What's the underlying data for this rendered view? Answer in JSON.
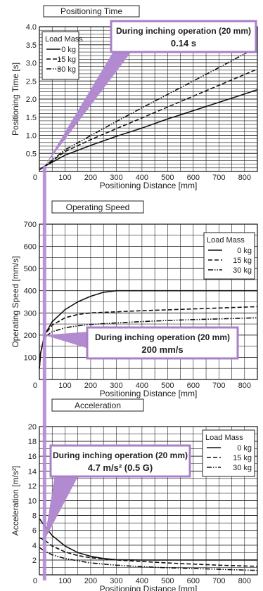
{
  "chart_data": [
    {
      "type": "line",
      "title": "Positioning Time",
      "xlabel": "Positioning Distance [mm]",
      "ylabel": "Positioning Time [s]",
      "xlim": [
        0,
        850
      ],
      "ylim": [
        0,
        4.0
      ],
      "xticks": [
        0,
        100,
        200,
        300,
        400,
        500,
        600,
        700,
        800
      ],
      "yticks": [
        0.5,
        1.0,
        1.5,
        2.0,
        2.5,
        3.0,
        3.5,
        4.0
      ],
      "xtick_labels": [
        "0",
        "100",
        "200",
        "300",
        "400",
        "500",
        "600",
        "700",
        "800"
      ],
      "ytick_labels": [
        "0.5",
        "1.0",
        "1.5",
        "2.0",
        "2.5",
        "3.0",
        "3.5",
        "4.0"
      ],
      "grid": "dense",
      "legend": {
        "title": "Load Mass",
        "placement": "top-left"
      },
      "series": [
        {
          "name": "0 kg",
          "style": "solid",
          "x": [
            0,
            20,
            100,
            200,
            300,
            400,
            500,
            600,
            700,
            800,
            850
          ],
          "y": [
            0.05,
            0.14,
            0.45,
            0.72,
            0.97,
            1.2,
            1.45,
            1.68,
            1.91,
            2.14,
            2.26
          ]
        },
        {
          "name": "15 kg",
          "style": "dashed",
          "x": [
            0,
            20,
            100,
            200,
            300,
            400,
            500,
            600,
            700,
            800,
            850
          ],
          "y": [
            0.05,
            0.14,
            0.55,
            0.88,
            1.18,
            1.48,
            1.78,
            2.08,
            2.38,
            2.68,
            2.83
          ]
        },
        {
          "name": "30 kg",
          "style": "dash-dot-dot",
          "x": [
            0,
            20,
            100,
            200,
            300,
            400,
            500,
            600,
            700,
            800,
            850
          ],
          "y": [
            0.05,
            0.14,
            0.6,
            0.99,
            1.38,
            1.76,
            2.13,
            2.5,
            2.87,
            3.25,
            3.45
          ]
        }
      ],
      "callout": {
        "line1": "During inching operation (20 mm)",
        "line2": "0.14 s",
        "x": 20,
        "y": 0.14
      }
    },
    {
      "type": "line",
      "title": "Operating Speed",
      "xlabel": "Positioning Distance [mm]",
      "ylabel": "Operating Speed [mm/s]",
      "xlim": [
        0,
        850
      ],
      "ylim": [
        0,
        700
      ],
      "xticks": [
        0,
        100,
        200,
        300,
        400,
        500,
        600,
        700,
        800
      ],
      "yticks": [
        100,
        200,
        300,
        400,
        500,
        600,
        700
      ],
      "xtick_labels": [
        "0",
        "100",
        "200",
        "300",
        "400",
        "500",
        "600",
        "700",
        "800"
      ],
      "ytick_labels": [
        "100",
        "200",
        "300",
        "400",
        "500",
        "600",
        "700"
      ],
      "grid": "coarse",
      "legend": {
        "title": "Load Mass",
        "placement": "top-right"
      },
      "series": [
        {
          "name": "0 kg",
          "style": "solid",
          "x": [
            0,
            5,
            20,
            50,
            100,
            150,
            200,
            250,
            300,
            400,
            500,
            600,
            700,
            850
          ],
          "y": [
            50,
            120,
            200,
            260,
            315,
            350,
            375,
            393,
            400,
            400,
            400,
            400,
            400,
            400
          ]
        },
        {
          "name": "15 kg",
          "style": "dashed",
          "x": [
            0,
            5,
            20,
            50,
            100,
            150,
            200,
            300,
            400,
            500,
            600,
            700,
            850
          ],
          "y": [
            50,
            120,
            200,
            245,
            278,
            293,
            300,
            305,
            310,
            314,
            318,
            322,
            328
          ]
        },
        {
          "name": "30 kg",
          "style": "dash-dot-dot",
          "x": [
            0,
            5,
            20,
            50,
            100,
            150,
            200,
            300,
            400,
            500,
            600,
            700,
            850
          ],
          "y": [
            50,
            120,
            190,
            215,
            233,
            242,
            248,
            255,
            261,
            266,
            270,
            273,
            278
          ]
        }
      ],
      "callout": {
        "line1": "During inching operation (20 mm)",
        "line2": "200 mm/s",
        "x": 20,
        "y": 200
      }
    },
    {
      "type": "line",
      "title": "Acceleration",
      "xlabel": "Positioning Distance [mm]",
      "ylabel": "Acceleration [m/s²]",
      "xlim": [
        0,
        850
      ],
      "ylim": [
        0,
        20
      ],
      "xticks": [
        0,
        100,
        200,
        300,
        400,
        500,
        600,
        700,
        800
      ],
      "yticks": [
        2,
        4,
        6,
        8,
        10,
        12,
        14,
        16,
        18,
        20
      ],
      "xtick_labels": [
        "0",
        "100",
        "200",
        "300",
        "400",
        "500",
        "600",
        "700",
        "800"
      ],
      "ytick_labels": [
        "2",
        "4",
        "6",
        "8",
        "10",
        "12",
        "14",
        "16",
        "18",
        "20"
      ],
      "grid": "coarse",
      "legend": {
        "title": "Load Mass",
        "placement": "top-right"
      },
      "series": [
        {
          "name": "0 kg",
          "style": "solid",
          "x": [
            0,
            20,
            50,
            100,
            150,
            200,
            250,
            300,
            400,
            500,
            600,
            700,
            850
          ],
          "y": [
            7.6,
            6.6,
            5.3,
            3.9,
            3.0,
            2.5,
            2.2,
            2.05,
            2.0,
            2.0,
            2.0,
            2.0,
            2.0
          ]
        },
        {
          "name": "15 kg",
          "style": "dashed",
          "x": [
            0,
            20,
            50,
            100,
            150,
            200,
            300,
            400,
            500,
            600,
            700,
            850
          ],
          "y": [
            5.0,
            4.7,
            3.9,
            3.1,
            2.6,
            2.3,
            2.0,
            1.8,
            1.6,
            1.45,
            1.3,
            1.15
          ]
        },
        {
          "name": "30 kg",
          "style": "dash-dot-dot",
          "x": [
            0,
            20,
            50,
            100,
            150,
            200,
            300,
            400,
            500,
            600,
            700,
            850
          ],
          "y": [
            3.7,
            3.2,
            2.7,
            2.2,
            1.9,
            1.6,
            1.3,
            1.1,
            0.95,
            0.85,
            0.75,
            0.6
          ]
        }
      ],
      "callout": {
        "line1": "During inching operation (20 mm)",
        "line2": "4.7 m/s² (0.5 G)",
        "x": 20,
        "y": 4.7
      }
    }
  ],
  "colors": {
    "callout_border": "#a880c8",
    "callout_bg": "#ffffff",
    "highlight_strip": "#b18ad0",
    "line": "#111111",
    "grid": "#222222",
    "background": "#ffffff"
  }
}
